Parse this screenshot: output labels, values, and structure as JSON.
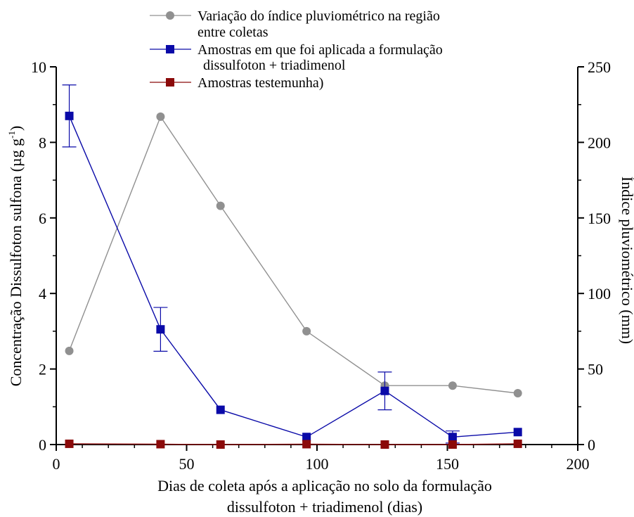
{
  "chart_data": {
    "type": "line",
    "xlabel_line1": "Dias de coleta após a aplicação no solo da formulação",
    "xlabel_line2": "dissulfoton + triadimenol (dias)",
    "ylabel_left_main": "Concentração Dissulfoton sulfona (µg g",
    "ylabel_left_sup": "-1",
    "ylabel_left_close": ")",
    "ylabel_right": "Índice pluviométrico (mm)",
    "xlim": [
      0,
      200
    ],
    "ylim_left": [
      0,
      10
    ],
    "ylim_right": [
      0,
      250
    ],
    "x_ticks": [
      "0",
      "50",
      "100",
      "150",
      "200"
    ],
    "y_left_ticks": [
      "0",
      "2",
      "4",
      "6",
      "8",
      "10"
    ],
    "y_right_ticks": [
      "0",
      "50",
      "100",
      "150",
      "200",
      "250"
    ],
    "legend_placement": "top",
    "series": [
      {
        "name": "Variação do índice pluviométrico na região entre coletas",
        "legend_line1": "Variação do índice pluviométrico na região",
        "legend_line2": "entre coletas",
        "axis": "right",
        "marker": "circle",
        "color": "#909090",
        "x": [
          5,
          40,
          63,
          96,
          126,
          152,
          177
        ],
        "y": [
          62,
          217,
          158,
          75,
          39,
          39,
          34
        ]
      },
      {
        "name": "Amostras em que foi aplicada a formulação dissulfoton + triadimenol",
        "legend_line1": "Amostras em que foi aplicada a formulação",
        "legend_line2": "dissulfoton + triadimenol",
        "axis": "left",
        "marker": "square",
        "color": "#0a0aa8",
        "x": [
          5,
          40,
          63,
          96,
          126,
          152,
          177
        ],
        "y": [
          8.7,
          3.05,
          0.92,
          0.2,
          1.42,
          0.2,
          0.33
        ],
        "error": [
          0.82,
          0.58,
          0,
          0,
          0.5,
          0.16,
          0
        ]
      },
      {
        "name": "Amostras testemunha)",
        "legend_line1": "Amostras testemunha)",
        "axis": "left",
        "marker": "square",
        "color": "#8b0a0a",
        "x": [
          5,
          40,
          63,
          96,
          126,
          152,
          177
        ],
        "y": [
          0.02,
          0.01,
          0.0,
          0.01,
          0.0,
          0.0,
          0.02
        ]
      }
    ]
  }
}
